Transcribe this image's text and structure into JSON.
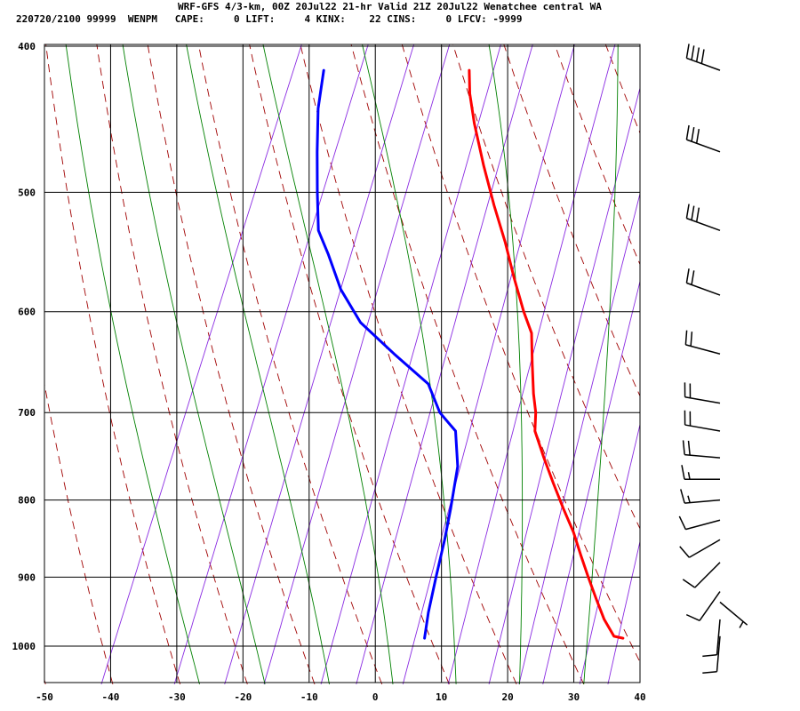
{
  "header": {
    "title": "WRF-GFS 4/3-km, 00Z 20Jul22 21-hr Valid 21Z 20Jul22 Wenatchee central WA",
    "line2": "220720/2100 99999  WENPM   CAPE:     0 LIFT:     4 KINX:    22 CINS:     0 LFCV: -9999"
  },
  "chart_data": {
    "type": "line",
    "chart": "skew-T log-P sounding",
    "xlabel": "",
    "ylabel": "",
    "x_range": [
      -50,
      40
    ],
    "x_ticks": [
      -50,
      -40,
      -30,
      -20,
      -10,
      0,
      10,
      20,
      30,
      40
    ],
    "y_range": [
      1050,
      400
    ],
    "y_ticks": [
      400,
      500,
      600,
      700,
      800,
      900,
      1000
    ],
    "grid": true,
    "legend": "none",
    "series": [
      {
        "color": "#ff0000",
        "points": [
          {
            "p": 988,
            "t": 35.0
          },
          {
            "p": 985,
            "t": 33.5
          },
          {
            "p": 960,
            "t": 31.0
          },
          {
            "p": 930,
            "t": 28.5
          },
          {
            "p": 900,
            "t": 26.0
          },
          {
            "p": 870,
            "t": 23.5
          },
          {
            "p": 840,
            "t": 21.0
          },
          {
            "p": 810,
            "t": 18.0
          },
          {
            "p": 780,
            "t": 15.0
          },
          {
            "p": 750,
            "t": 12.0
          },
          {
            "p": 720,
            "t": 9.0
          },
          {
            "p": 700,
            "t": 8.0
          },
          {
            "p": 680,
            "t": 6.5
          },
          {
            "p": 650,
            "t": 4.5
          },
          {
            "p": 620,
            "t": 2.5
          },
          {
            "p": 600,
            "t": 0.0
          },
          {
            "p": 570,
            "t": -3.5
          },
          {
            "p": 540,
            "t": -7.0
          },
          {
            "p": 510,
            "t": -11.0
          },
          {
            "p": 480,
            "t": -15.0
          },
          {
            "p": 450,
            "t": -19.0
          },
          {
            "p": 430,
            "t": -21.5
          },
          {
            "p": 415,
            "t": -23.0
          }
        ]
      },
      {
        "color": "#0000ff",
        "points": [
          {
            "p": 988,
            "t": 5.0
          },
          {
            "p": 950,
            "t": 4.0
          },
          {
            "p": 900,
            "t": 3.0
          },
          {
            "p": 850,
            "t": 2.0
          },
          {
            "p": 810,
            "t": 1.0
          },
          {
            "p": 760,
            "t": -0.5
          },
          {
            "p": 720,
            "t": -3.0
          },
          {
            "p": 700,
            "t": -6.5
          },
          {
            "p": 670,
            "t": -10.0
          },
          {
            "p": 640,
            "t": -17.0
          },
          {
            "p": 610,
            "t": -24.0
          },
          {
            "p": 580,
            "t": -29.0
          },
          {
            "p": 550,
            "t": -33.0
          },
          {
            "p": 530,
            "t": -36.0
          },
          {
            "p": 500,
            "t": -38.5
          },
          {
            "p": 470,
            "t": -41.0
          },
          {
            "p": 440,
            "t": -43.5
          },
          {
            "p": 415,
            "t": -45.0
          }
        ]
      }
    ],
    "wind_barbs": [
      {
        "p": 415,
        "dir": 290,
        "kt": 40
      },
      {
        "p": 470,
        "dir": 290,
        "kt": 30
      },
      {
        "p": 530,
        "dir": 290,
        "kt": 30
      },
      {
        "p": 585,
        "dir": 290,
        "kt": 20
      },
      {
        "p": 640,
        "dir": 285,
        "kt": 20
      },
      {
        "p": 690,
        "dir": 280,
        "kt": 20
      },
      {
        "p": 720,
        "dir": 280,
        "kt": 20
      },
      {
        "p": 750,
        "dir": 275,
        "kt": 20
      },
      {
        "p": 775,
        "dir": 270,
        "kt": 15
      },
      {
        "p": 800,
        "dir": 265,
        "kt": 15
      },
      {
        "p": 825,
        "dir": 255,
        "kt": 10
      },
      {
        "p": 850,
        "dir": 240,
        "kt": 10
      },
      {
        "p": 880,
        "dir": 225,
        "kt": 10
      },
      {
        "p": 920,
        "dir": 215,
        "kt": 10
      },
      {
        "p": 935,
        "dir": 130,
        "kt": 5
      },
      {
        "p": 960,
        "dir": 185,
        "kt": 10
      },
      {
        "p": 985,
        "dir": 185,
        "kt": 10
      }
    ]
  }
}
